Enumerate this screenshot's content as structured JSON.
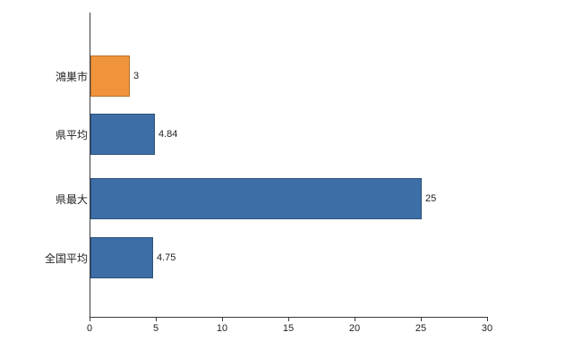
{
  "chart_data": {
    "type": "bar",
    "orientation": "horizontal",
    "title": "",
    "xlabel": "",
    "ylabel": "",
    "categories": [
      "鴻巣市",
      "県平均",
      "県最大",
      "全国平均"
    ],
    "values": [
      3,
      4.84,
      25,
      4.75
    ],
    "value_labels": [
      "3",
      "4.84",
      "25",
      "4.75"
    ],
    "bar_colors": [
      "#f0943c",
      "#3d6ea6",
      "#3d6ea6",
      "#3d6ea6"
    ],
    "bar_border_colors": [
      "#c8username7420",
      "#2d5480"
    ],
    "xlim": [
      0,
      30
    ],
    "x_ticks": [
      0,
      5,
      10,
      15,
      20,
      25,
      30
    ],
    "grid": false,
    "legend": false,
    "background_color": "#ffffff",
    "axis_color": "#3a3a3a",
    "label_color": "#222222"
  }
}
